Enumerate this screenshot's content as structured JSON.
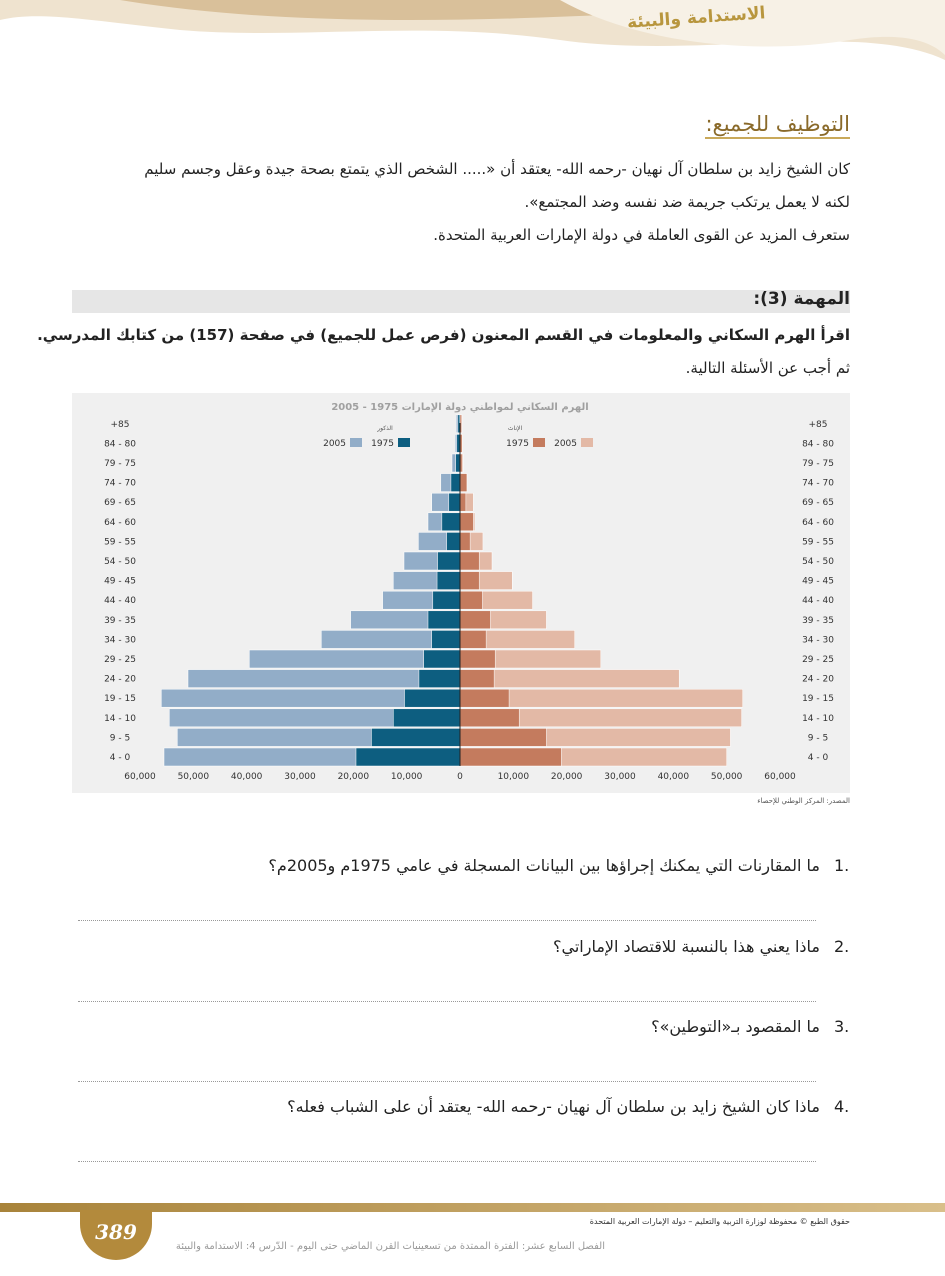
{
  "header": {
    "section": "الاستدامة والبيئة"
  },
  "intro": {
    "heading": "التوظيف للجميع:",
    "lines": [
      "كان الشيخ زايد بن سلطان آل نهيان -رحمه الله- يعتقد أن «..... الشخص الذي يتمتع بصحة جيدة وعقل وجسم سليم",
      "لكنه لا يعمل يرتكب جريمة ضد نفسه وضد المجتمع».",
      "ستعرف المزيد عن القوى العاملة في دولة الإمارات العربية المتحدة."
    ]
  },
  "task": {
    "heading": "المهمة (3):",
    "instruction": "اقرأ الهرم السكاني والمعلومات في القسم المعنون (فرص عمل للجميع) في صفحة (157) من كتابك المدرسي.",
    "followup": "ثم أجب عن الأسئلة التالية."
  },
  "chart_data": {
    "type": "pyramid",
    "title": "الهرم السكاني لمواطني دولة الإمارات 1975 - 2005",
    "categories": [
      "4 - 0",
      "9 - 5",
      "14 - 10",
      "19 - 15",
      "24 - 20",
      "29 - 25",
      "34 - 30",
      "39 - 35",
      "44 - 40",
      "49 - 45",
      "54 - 50",
      "59 - 55",
      "64 - 60",
      "69 - 65",
      "74 - 70",
      "79 - 75",
      "84 - 80",
      "+85"
    ],
    "groups": [
      {
        "name": "الذكور",
        "series": [
          {
            "name": "2005",
            "color": "#92adc8",
            "values": [
              55500,
              53000,
              54500,
              56000,
              51000,
              39500,
              26000,
              20500,
              14500,
              12500,
              10500,
              7800,
              6000,
              5300,
              3600,
              1500,
              900,
              700
            ]
          },
          {
            "name": "1975",
            "color": "#0d5e80",
            "values": [
              19500,
              16600,
              12500,
              10400,
              7700,
              6800,
              5300,
              6000,
              5100,
              4300,
              4200,
              2500,
              3400,
              2100,
              1700,
              800,
              600,
              400
            ]
          }
        ]
      },
      {
        "name": "الإناث",
        "series": [
          {
            "name": "2005",
            "color": "#e3b9a6",
            "values": [
              50000,
              50700,
              52800,
              53000,
              41100,
              26400,
              21500,
              16200,
              13600,
              9800,
              6000,
              4300,
              2800,
              2500,
              1300,
              600,
              500,
              400
            ]
          },
          {
            "name": "1975",
            "color": "#c47b5e",
            "values": [
              19000,
              16200,
              11100,
              9200,
              6400,
              6600,
              4900,
              5700,
              4200,
              3600,
              3600,
              1900,
              2500,
              1100,
              1300,
              400,
              400,
              300
            ]
          }
        ]
      }
    ],
    "xlim": [
      -60000,
      60000
    ],
    "xticks": [
      {
        "value": -60000,
        "label": "60,000"
      },
      {
        "value": -50000,
        "label": "50,000"
      },
      {
        "value": -40000,
        "label": "40,000"
      },
      {
        "value": -30000,
        "label": "30,000"
      },
      {
        "value": -20000,
        "label": "20,000"
      },
      {
        "value": -10000,
        "label": "10,000"
      },
      0,
      {
        "value": 10000,
        "label": "10,000"
      },
      {
        "value": 20000,
        "label": "20,000"
      },
      {
        "value": 30000,
        "label": "30,000"
      },
      {
        "value": 40000,
        "label": "40,000"
      },
      {
        "value": 50000,
        "label": "50,000"
      },
      {
        "value": 60000,
        "label": "60,000"
      }
    ],
    "source": "المصدر: المركز الوطني للإحصاء"
  },
  "questions": [
    {
      "number": "1.",
      "text": "ما المقارنات التي يمكنك إجراؤها بين البيانات المسجلة في عامي 1975م و2005م؟"
    },
    {
      "number": "2.",
      "text": "ماذا يعني هذا بالنسبة للاقتصاد الإماراتي؟"
    },
    {
      "number": "3.",
      "text": "ما المقصود بـ«التوطين»؟"
    },
    {
      "number": "4.",
      "text": "ماذا كان الشيخ زايد بن سلطان آل نهيان -رحمه الله- يعتقد أن على الشباب فعله؟"
    }
  ],
  "footer": {
    "page": "389",
    "copyright": "حقوق الطبع © محفوظة لوزارة التربية والتعليم – دولة الإمارات العربية المتحدة",
    "course": "الفصل السابع عشر: الفترة الممتدة من تسعينيات القرن الماضي حتى اليوم - الدّرس 4: الاستدامة والبيئة"
  }
}
